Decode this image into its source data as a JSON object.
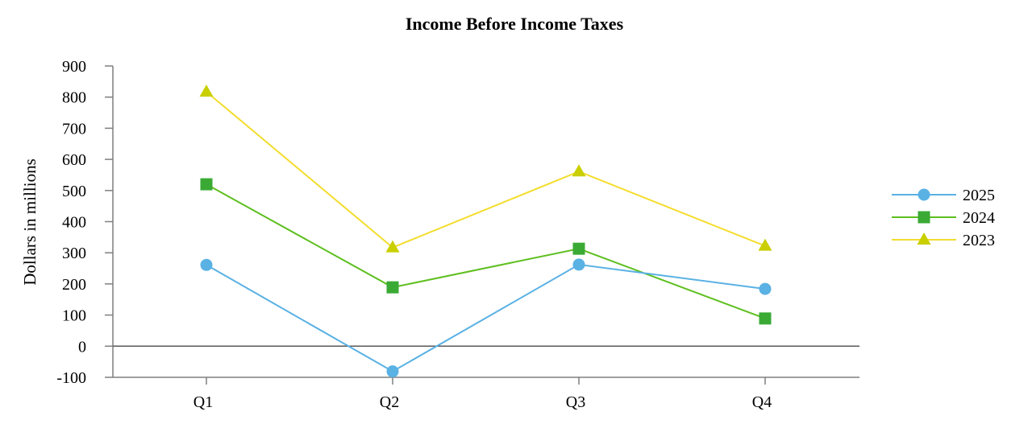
{
  "chart_data": {
    "type": "line",
    "title": "Income Before Income Taxes",
    "xlabel": "",
    "ylabel": "Dollars in millions",
    "categories": [
      "Q1",
      "Q2",
      "Q3",
      "Q4"
    ],
    "ylim": [
      -100,
      900
    ],
    "yticks": [
      -100,
      0,
      100,
      200,
      300,
      400,
      500,
      600,
      700,
      800,
      900
    ],
    "grid": false,
    "zero_line": true,
    "legend_position": "right",
    "series": [
      {
        "name": "2025",
        "values": [
          261,
          -81,
          262,
          184
        ],
        "color": "#5AB1E4",
        "marker": "circle"
      },
      {
        "name": "2024",
        "values": [
          520,
          189,
          313,
          89
        ],
        "color": "#3AAA35",
        "line_color": "#5EBF1F",
        "marker": "square"
      },
      {
        "name": "2023",
        "values": [
          817,
          317,
          561,
          322
        ],
        "color": "#C9CF00",
        "line_color": "#F3DD2D",
        "marker": "triangle"
      }
    ],
    "axis_color": "#7F7F7F",
    "zero_line_color": "#595959"
  }
}
